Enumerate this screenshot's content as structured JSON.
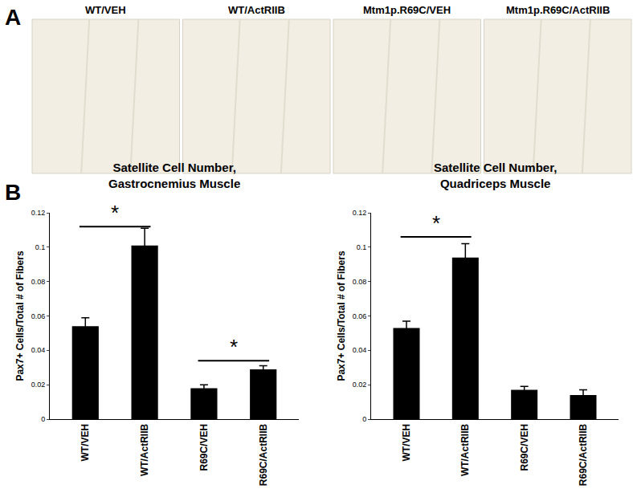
{
  "panels": {
    "A": {
      "label": "A",
      "images": [
        "WT/VEH",
        "WT/ActRIIB",
        "Mtm1p.R69C/VEH",
        "Mtm1p.R69C/ActRIIB"
      ]
    },
    "B": {
      "label": "B"
    }
  },
  "chart_data": [
    {
      "type": "bar",
      "title": "Satellite Cell Number,\nGastrocnemius Muscle",
      "y_label": "Pax7+ Cells/Total # of Fibers",
      "categories": [
        "WT/VEH",
        "WT/ActRIIB",
        "R69C/VEH",
        "R69C/ActRIIB"
      ],
      "values": [
        0.054,
        0.101,
        0.018,
        0.029
      ],
      "errors": [
        0.005,
        0.01,
        0.002,
        0.002
      ],
      "color": "#000000",
      "ylim": [
        0,
        0.12
      ],
      "yticks": [
        0,
        0.02,
        0.04,
        0.06,
        0.08,
        0.1,
        0.12
      ],
      "grid": false,
      "annotations": [
        {
          "text": "*",
          "x0": 0,
          "x1": 1,
          "y": 0.112
        },
        {
          "text": "*",
          "x0": 2,
          "x1": 3,
          "y": 0.034
        }
      ]
    },
    {
      "type": "bar",
      "title": "Satellite Cell Number,\nQuadriceps Muscle",
      "y_label": "Pax7+ Cells/Total # of Fibers",
      "categories": [
        "WT/VEH",
        "WT/ActRIIB",
        "R69C/VEH",
        "R69C/ActRIIB"
      ],
      "values": [
        0.053,
        0.094,
        0.017,
        0.014
      ],
      "errors": [
        0.004,
        0.008,
        0.002,
        0.003
      ],
      "color": "#000000",
      "ylim": [
        0,
        0.12
      ],
      "yticks": [
        0,
        0.02,
        0.04,
        0.06,
        0.08,
        0.1,
        0.12
      ],
      "grid": false,
      "annotations": [
        {
          "text": "*",
          "x0": 0,
          "x1": 1,
          "y": 0.106
        }
      ]
    }
  ]
}
